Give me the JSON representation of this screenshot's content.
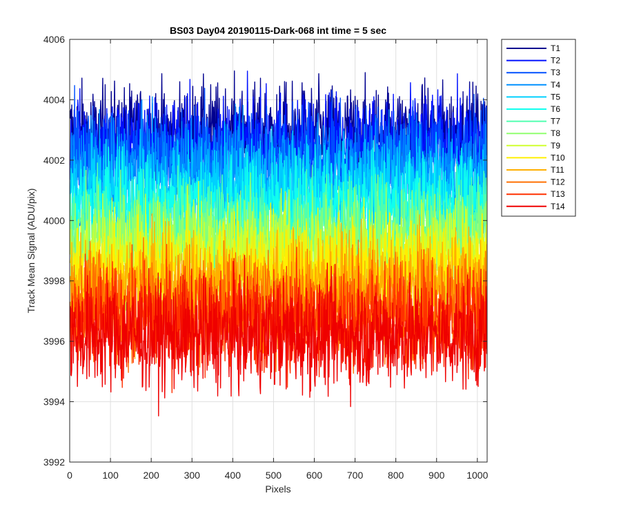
{
  "chart_data": {
    "type": "line",
    "title": "BS03 Day04 20190115-Dark-068 int time = 5 sec",
    "xlabel": "Pixels",
    "ylabel": "Track Mean Signal (ADU/pix)",
    "xlim": [
      0,
      1024
    ],
    "ylim": [
      3992,
      4006
    ],
    "xticks": [
      0,
      100,
      200,
      300,
      400,
      500,
      600,
      700,
      800,
      900,
      1000
    ],
    "yticks": [
      3992,
      3994,
      3996,
      3998,
      4000,
      4002,
      4004,
      4006
    ],
    "grid": true,
    "legend_position": "outside-top-right",
    "x_points": 1024,
    "series": [
      {
        "name": "T1",
        "color": "#00008f",
        "mean": 4002.8,
        "spread": 0.85
      },
      {
        "name": "T2",
        "color": "#0010ff",
        "mean": 4002.5,
        "spread": 0.85
      },
      {
        "name": "T3",
        "color": "#0050ff",
        "mean": 4002.1,
        "spread": 0.85
      },
      {
        "name": "T4",
        "color": "#0090ff",
        "mean": 4001.6,
        "spread": 0.85
      },
      {
        "name": "T5",
        "color": "#00d0ff",
        "mean": 4001.0,
        "spread": 0.85
      },
      {
        "name": "T6",
        "color": "#10ffef",
        "mean": 4000.4,
        "spread": 0.85
      },
      {
        "name": "T7",
        "color": "#50ffaf",
        "mean": 3999.8,
        "spread": 0.85
      },
      {
        "name": "T8",
        "color": "#90ff6f",
        "mean": 3999.3,
        "spread": 0.85
      },
      {
        "name": "T9",
        "color": "#d0ff2f",
        "mean": 3998.8,
        "spread": 0.85
      },
      {
        "name": "T10",
        "color": "#ffef00",
        "mean": 3998.3,
        "spread": 0.85
      },
      {
        "name": "T11",
        "color": "#ffaf00",
        "mean": 3997.8,
        "spread": 0.9
      },
      {
        "name": "T12",
        "color": "#ff7000",
        "mean": 3997.2,
        "spread": 0.9
      },
      {
        "name": "T13",
        "color": "#ff3000",
        "mean": 3996.7,
        "spread": 0.9
      },
      {
        "name": "T14",
        "color": "#ef0000",
        "mean": 3996.2,
        "spread": 0.9
      }
    ]
  }
}
